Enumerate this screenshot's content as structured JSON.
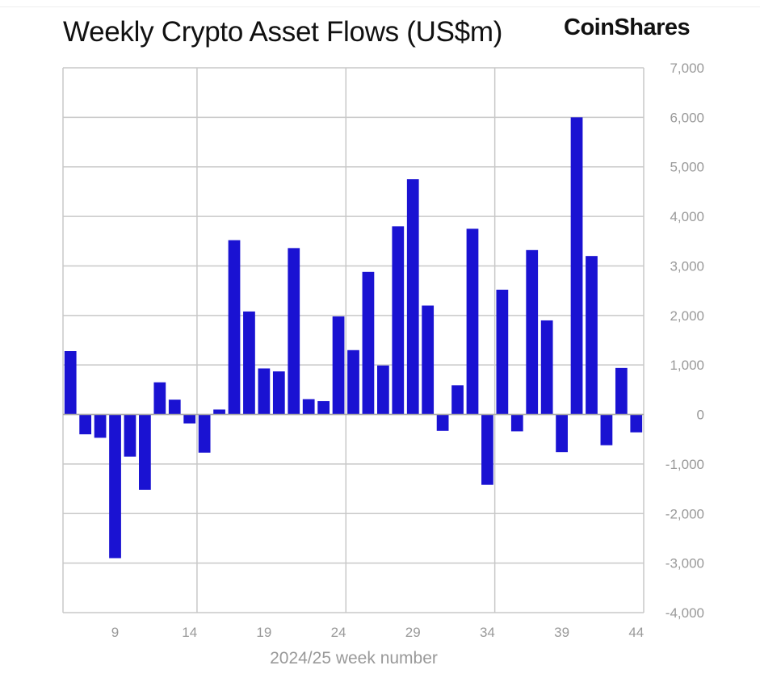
{
  "header": {
    "title": "Weekly Crypto Asset Flows (US$m)",
    "logo": "CoinShares"
  },
  "colors": {
    "bar": "#1a12d2",
    "grid": "#c8c8c8",
    "tick": "#999999"
  },
  "chart_data": {
    "type": "bar",
    "title": "Weekly Crypto Asset Flows (US$m)",
    "xlabel": "2024/25 week number",
    "ylabel": "",
    "ylim": [
      -4000,
      7000
    ],
    "xlim": [
      5.5,
      44.5
    ],
    "yticks": [
      7000,
      6000,
      5000,
      4000,
      3000,
      2000,
      1000,
      0,
      -1000,
      -2000,
      -3000,
      -4000
    ],
    "ytick_labels": [
      "7,000",
      "6,000",
      "5,000",
      "4,000",
      "3,000",
      "2,000",
      "1,000",
      "0",
      "-1,000",
      "-2,000",
      "-3,000",
      "-4,000"
    ],
    "xticks": [
      9,
      14,
      19,
      24,
      29,
      34,
      39,
      44
    ],
    "xtick_labels": [
      "9",
      "14",
      "19",
      "24",
      "29",
      "34",
      "39",
      "44"
    ],
    "y_axis_position": "right",
    "grid": true,
    "categories": [
      6,
      7,
      8,
      9,
      10,
      11,
      12,
      13,
      14,
      15,
      16,
      17,
      18,
      19,
      20,
      21,
      22,
      23,
      24,
      25,
      26,
      27,
      28,
      29,
      30,
      31,
      32,
      33,
      34,
      35,
      36,
      37,
      38,
      39,
      40,
      41,
      42,
      43,
      44
    ],
    "values": [
      1280,
      -400,
      -470,
      -2900,
      -850,
      -1520,
      650,
      300,
      -180,
      -770,
      100,
      3520,
      2080,
      930,
      870,
      3360,
      310,
      270,
      1980,
      1300,
      2880,
      990,
      3800,
      4750,
      2200,
      -330,
      590,
      3750,
      -1420,
      2520,
      -340,
      3320,
      1900,
      -760,
      6000,
      3200,
      -620,
      940,
      -360
    ]
  }
}
